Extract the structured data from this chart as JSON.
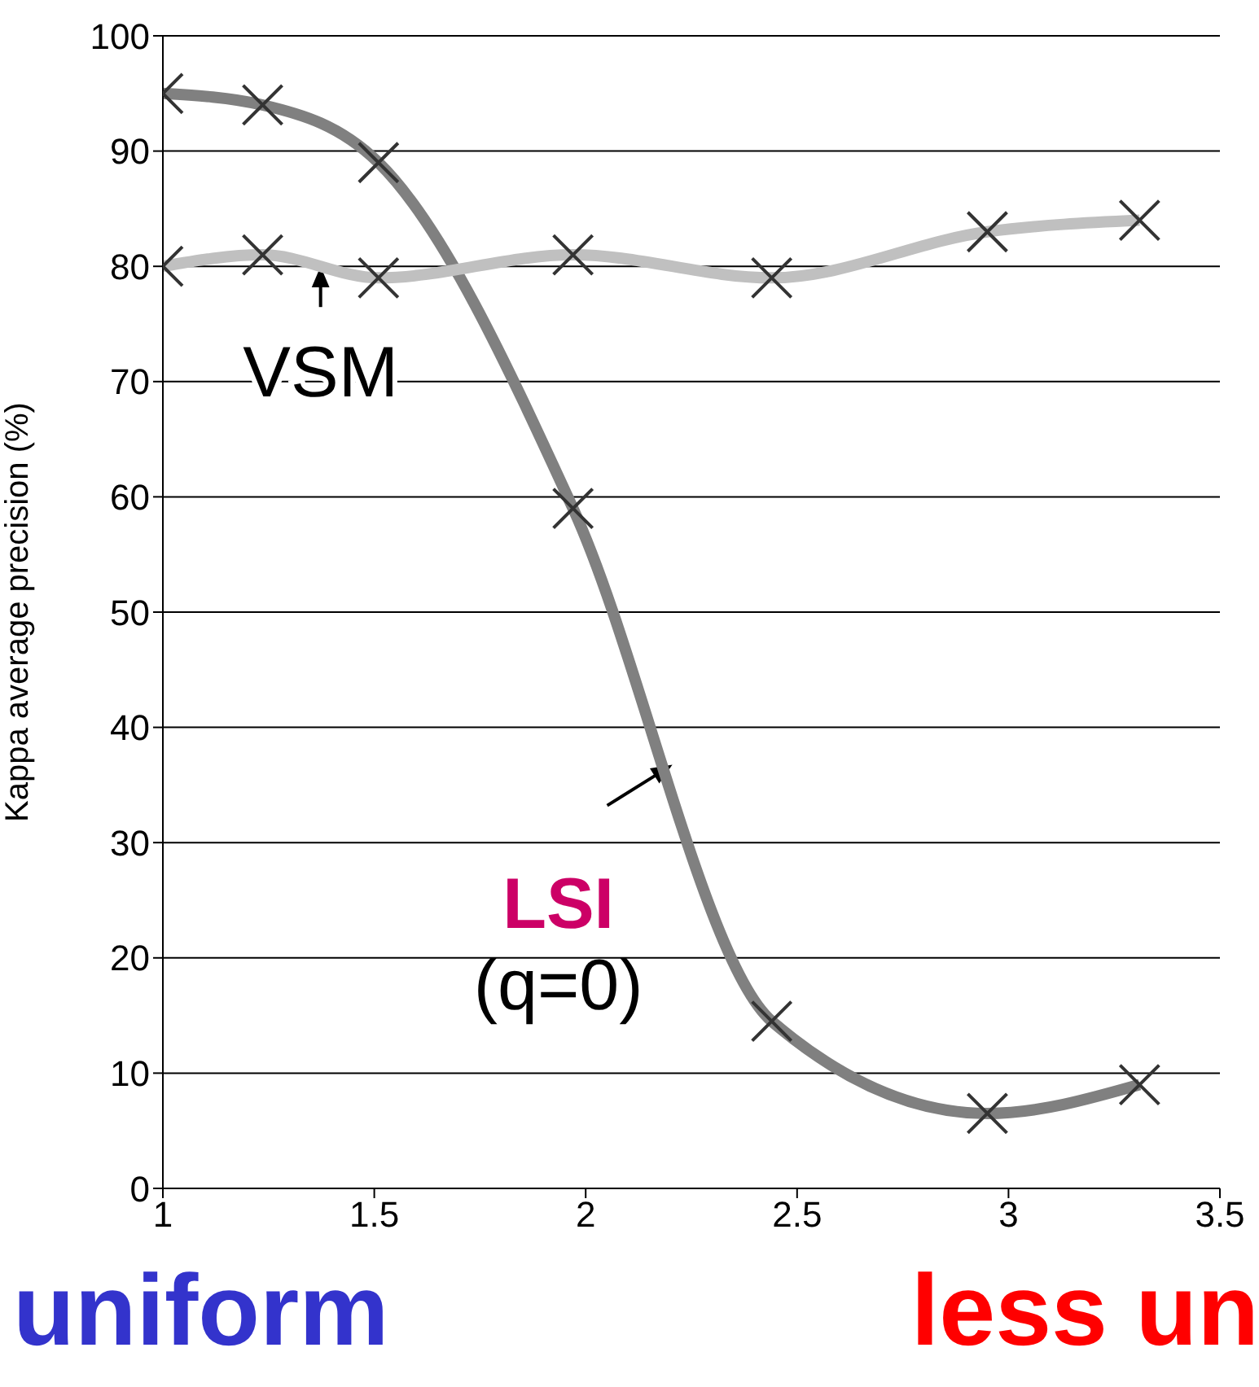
{
  "chart_data": {
    "type": "line",
    "ylabel": "Kappa average precision (%)",
    "x": [
      1,
      1.236,
      1.51,
      1.97,
      2.44,
      2.95,
      3.31
    ],
    "series": [
      {
        "name": "LSI",
        "color": "#808080",
        "marker": "cross",
        "values": [
          95,
          94,
          89,
          59,
          14.5,
          6.5,
          9
        ]
      },
      {
        "name": "VSM",
        "color": "#c0c0c0",
        "marker": "cross",
        "values": [
          80,
          81,
          79,
          81,
          79,
          83,
          84
        ]
      }
    ],
    "xlim": [
      1,
      3.5
    ],
    "xticks": [
      1,
      1.5,
      2,
      2.5,
      3,
      3.5
    ],
    "ylim": [
      0,
      100
    ],
    "yticks": [
      0,
      10,
      20,
      30,
      40,
      50,
      60,
      70,
      80,
      90,
      100
    ],
    "grid": "y",
    "annotations": [
      "(q=0)",
      "uniform",
      "less un"
    ]
  }
}
